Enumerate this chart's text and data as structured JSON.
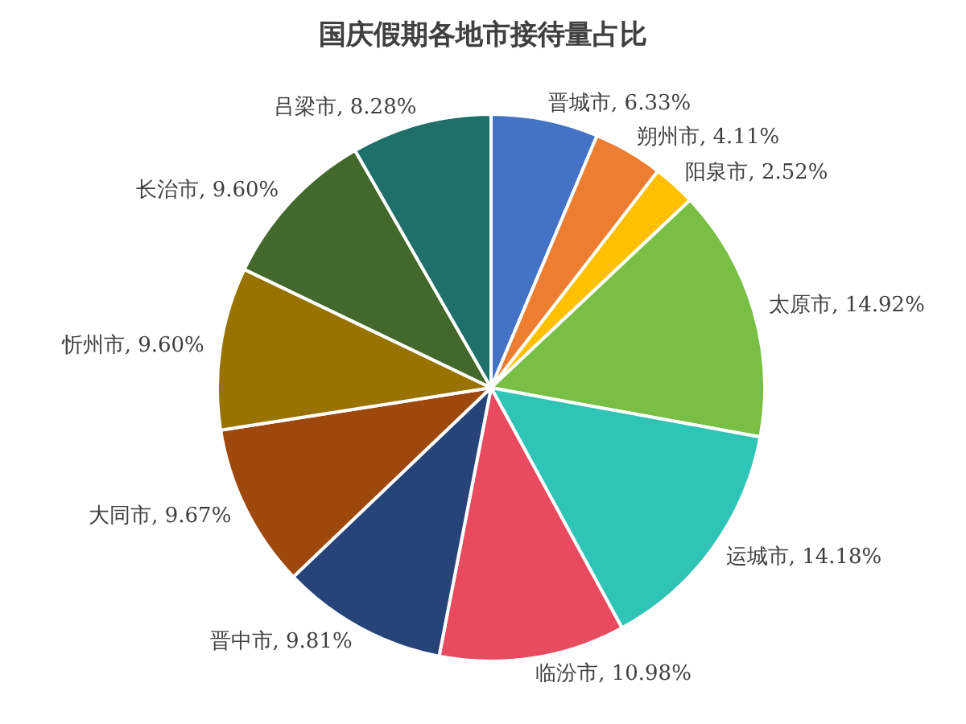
{
  "chart_data": {
    "type": "pie",
    "title": "国庆假期各地市接待量占比",
    "categories": [
      "晋城市",
      "朔州市",
      "阳泉市",
      "太原市",
      "运城市",
      "临汾市",
      "晋中市",
      "大同市",
      "忻州市",
      "长治市",
      "吕梁市"
    ],
    "values": [
      6.33,
      4.11,
      2.52,
      14.92,
      14.18,
      10.98,
      9.81,
      9.67,
      9.6,
      9.6,
      8.28
    ],
    "value_labels": [
      "6.33%",
      "4.11%",
      "2.52%",
      "14.92%",
      "14.18%",
      "10.98%",
      "9.81%",
      "9.67%",
      "9.60%",
      "9.60%",
      "8.28%"
    ],
    "colors": [
      "#4472c4",
      "#ed7d31",
      "#ffc000",
      "#7abf45",
      "#2ec4b6",
      "#e84a5f",
      "#264478",
      "#9e480e",
      "#997300",
      "#43682b",
      "#1e7068"
    ],
    "legend": false
  }
}
